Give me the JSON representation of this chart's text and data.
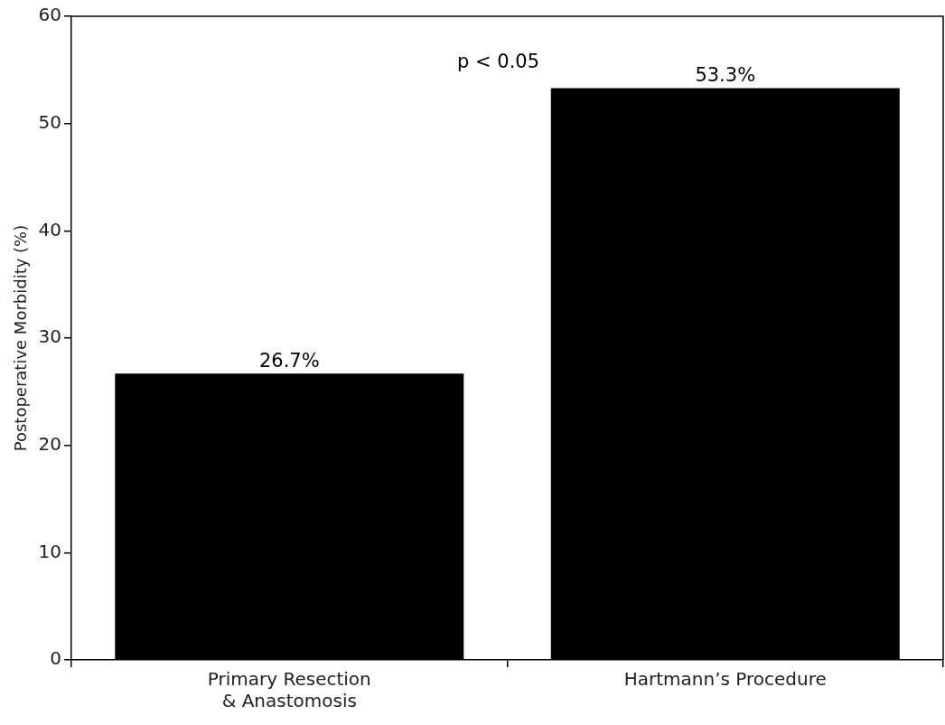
{
  "chart_data": {
    "type": "bar",
    "ylabel": "Postoperative Morbidity (%)",
    "categories": [
      "Primary Resection\n& Anastomosis",
      "Hartmann’s Procedure"
    ],
    "values": [
      26.7,
      53.3
    ],
    "color": "#000000",
    "value_labels": [
      "26.7%",
      "53.3%"
    ],
    "ylim": [
      0,
      60
    ],
    "yticks": [
      0,
      10,
      20,
      30,
      40,
      50,
      60
    ],
    "grid": false,
    "legend": false,
    "annotations": [
      "p < 0.05"
    ]
  }
}
